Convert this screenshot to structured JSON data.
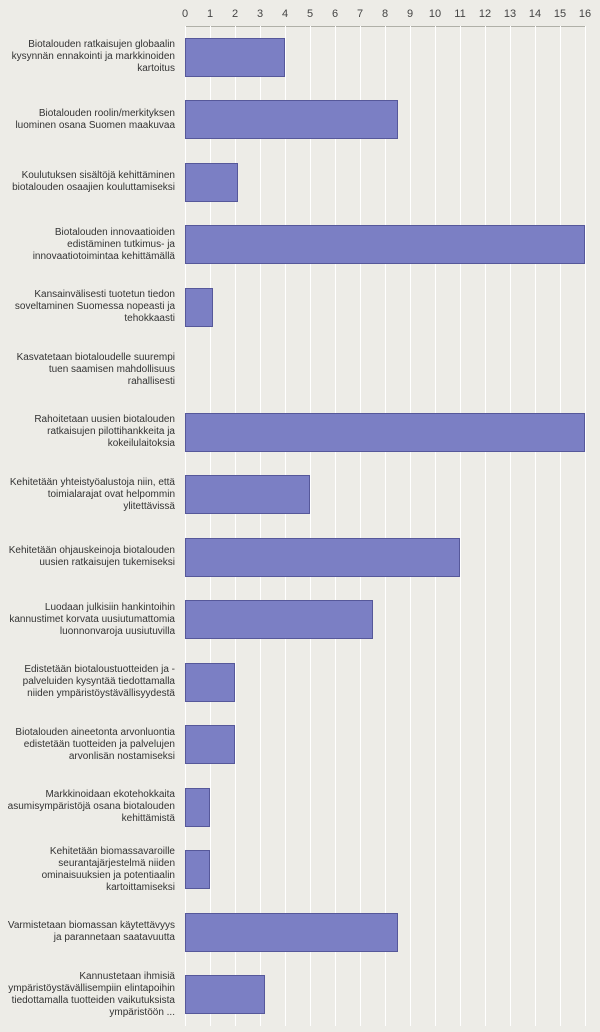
{
  "chart": {
    "type": "bar-horizontal",
    "background_color": "#edece7",
    "grid_color": "#ffffff",
    "axis_line_color": "#b0b0a8",
    "bar_fill": "#7b7fc4",
    "bar_border": "#56589a",
    "label_fontsize": 10,
    "tick_fontsize": 11,
    "xlim": [
      0,
      16
    ],
    "xtick_step": 1,
    "ticks": [
      "0",
      "1",
      "2",
      "3",
      "4",
      "5",
      "6",
      "7",
      "8",
      "9",
      "10",
      "11",
      "12",
      "13",
      "14",
      "15",
      "16"
    ],
    "categories": [
      "Biotalouden ratkaisujen globaalin kysynnän ennakointi ja markkinoiden kartoitus",
      "Biotalouden roolin/merkityksen luominen osana Suomen maakuvaa",
      "Koulutuksen sisältöjä kehittäminen biotalouden osaajien kouluttamiseksi",
      "Biotalouden innovaatioiden edistäminen tutkimus- ja innovaatiotoimintaa kehittämällä",
      "Kansainvälisesti tuotetun tiedon soveltaminen Suomessa nopeasti ja tehokkaasti",
      "Kasvatetaan biotaloudelle suurempi tuen saamisen mahdollisuus rahallisesti",
      "Rahoitetaan uusien biotalouden ratkaisujen pilottihankkeita ja kokeilulaitoksia",
      "Kehitetään yhteistyöalustoja niin, että toimialarajat ovat helpommin ylitettävissä",
      "Kehitetään ohjauskeinoja biotalouden uusien ratkaisujen tukemiseksi",
      "Luodaan julkisiin hankintoihin kannustimet korvata uusiutumattomia luonnonvaroja uusiutuvilla",
      "Edistetään biotaloustuotteiden ja -palveluiden kysyntää tiedottamalla niiden ympäristöystävällisyydestä",
      "Biotalouden aineetonta arvonluontia edistetään tuotteiden ja palvelujen arvonlisän nostamiseksi",
      "Markkinoidaan ekotehokkaita asumisympäristöjä osana biotalouden kehittämistä",
      "Kehitetään biomassavaroille seurantajärjestelmä niiden ominaisuuksien ja potentiaalin kartoittamiseksi",
      "Varmistetaan biomassan käytettävyys ja parannetaan saatavuutta",
      "Kannustetaan ihmisiä ympäristöystävällisempiin elintapoihin tiedottamalla tuotteiden vaikutuksista ympäristöön ..."
    ],
    "values": [
      4,
      8.5,
      2.1,
      16,
      1.1,
      0,
      16,
      5,
      11,
      7.5,
      2,
      2,
      1,
      1,
      8.5,
      3.2
    ]
  }
}
